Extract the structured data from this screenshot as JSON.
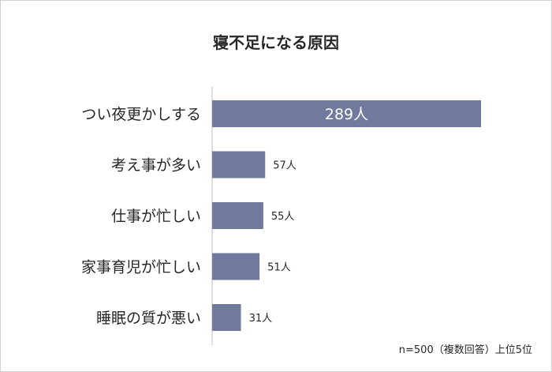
{
  "chart_data": {
    "type": "bar",
    "orientation": "horizontal",
    "title": "寝不足になる原因",
    "categories": [
      "つい夜更かしする",
      "考え事が多い",
      "仕事が忙しい",
      "家事育児が忙しい",
      "睡眠の質が悪い"
    ],
    "values": [
      289,
      57,
      55,
      51,
      31
    ],
    "data_labels": [
      "289人",
      "57人",
      "55人",
      "51人",
      "31人"
    ],
    "xlim": [
      0,
      289
    ],
    "grid": false,
    "bar_color": "#717a9c",
    "note": "n=500（複数回答）上位5位"
  }
}
